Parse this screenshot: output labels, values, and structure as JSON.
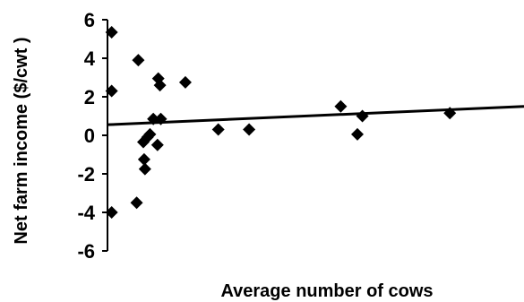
{
  "chart_data": {
    "type": "scatter",
    "title": "",
    "xlabel": "Average number of cows",
    "ylabel": "Net farm income ($/cwt )",
    "ylim": [
      -6,
      6
    ],
    "yticks": [
      6,
      4,
      2,
      0,
      -2,
      -4,
      -6
    ],
    "xlim": [
      0,
      100
    ],
    "grid": false,
    "legend": "none",
    "marker": "diamond",
    "marker_color": "#000000",
    "points": [
      {
        "x": 1,
        "y": 5.35
      },
      {
        "x": 1,
        "y": 2.3
      },
      {
        "x": 1,
        "y": -4.0
      },
      {
        "x": 7.4,
        "y": 3.9
      },
      {
        "x": 7,
        "y": -3.5
      },
      {
        "x": 8.6,
        "y": -0.35
      },
      {
        "x": 8.8,
        "y": -1.25
      },
      {
        "x": 9,
        "y": -1.75
      },
      {
        "x": 9.6,
        "y": -0.1
      },
      {
        "x": 10.2,
        "y": 0.05
      },
      {
        "x": 11,
        "y": 0.85
      },
      {
        "x": 12.2,
        "y": 2.95
      },
      {
        "x": 12.6,
        "y": 2.6
      },
      {
        "x": 12.8,
        "y": 0.85
      },
      {
        "x": 12,
        "y": -0.5
      },
      {
        "x": 18.7,
        "y": 2.75
      },
      {
        "x": 26.6,
        "y": 0.3
      },
      {
        "x": 34,
        "y": 0.3
      },
      {
        "x": 56,
        "y": 1.5
      },
      {
        "x": 60,
        "y": 0.05
      },
      {
        "x": 61.2,
        "y": 1.0
      },
      {
        "x": 82.2,
        "y": 1.15
      }
    ],
    "trendline": {
      "x": [
        0,
        100
      ],
      "y": [
        0.55,
        1.5
      ]
    }
  }
}
